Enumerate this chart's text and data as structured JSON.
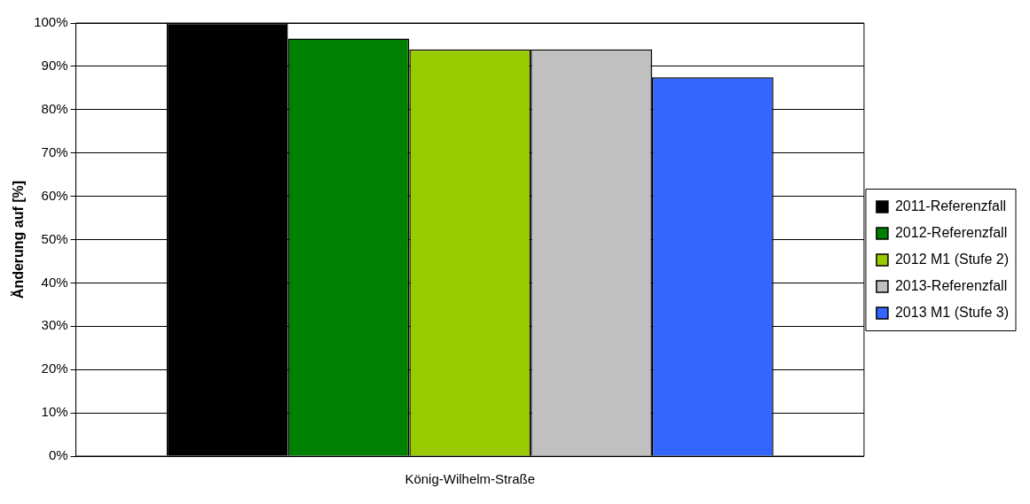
{
  "chart_data": {
    "type": "bar",
    "ylabel": "Änderung auf [%]",
    "categories": [
      "König-Wilhelm-Straße"
    ],
    "series": [
      {
        "name": "2011-Referenzfall",
        "color": "#000000",
        "values": [
          100
        ]
      },
      {
        "name": "2012-Referenzfall",
        "color": "#008000",
        "values": [
          96.4
        ]
      },
      {
        "name": "2012 M1 (Stufe 2)",
        "color": "#99cc00",
        "values": [
          93.9
        ]
      },
      {
        "name": "2013-Referenzfall",
        "color": "#c0c0c0",
        "values": [
          93.9
        ]
      },
      {
        "name": "2013 M1 (Stufe 3)",
        "color": "#3366ff",
        "values": [
          87.5
        ]
      }
    ],
    "ylim": [
      0,
      100
    ],
    "yticks": [
      {
        "value": 0,
        "label": "0%"
      },
      {
        "value": 10,
        "label": "10%"
      },
      {
        "value": 20,
        "label": "20%"
      },
      {
        "value": 30,
        "label": "30%"
      },
      {
        "value": 40,
        "label": "40%"
      },
      {
        "value": 50,
        "label": "50%"
      },
      {
        "value": 60,
        "label": "60%"
      },
      {
        "value": 70,
        "label": "70%"
      },
      {
        "value": 80,
        "label": "80%"
      },
      {
        "value": 90,
        "label": "90%"
      },
      {
        "value": 100,
        "label": "100%"
      }
    ],
    "grid": "y",
    "legend": "right"
  }
}
